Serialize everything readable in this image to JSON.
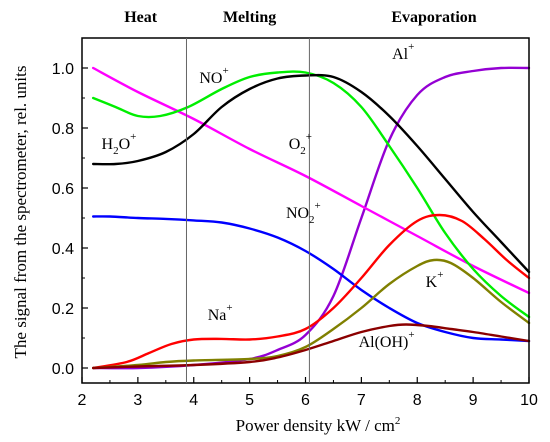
{
  "chart_data": {
    "type": "line",
    "xlabel": "Power density kW / cm",
    "xlabel_sup": "2",
    "ylabel": "The signal from the spectrometer, rel. units",
    "xlim": [
      2,
      10
    ],
    "ylim": [
      -0.05,
      1.1
    ],
    "x_ticks": [
      "2",
      "3",
      "4",
      "5",
      "6",
      "7",
      "8",
      "9",
      "10"
    ],
    "y_ticks": [
      "0.0",
      "0.2",
      "0.4",
      "0.6",
      "0.8",
      "1.0"
    ],
    "grid": false,
    "legend": "none",
    "phases": [
      {
        "label": "Heat",
        "center": 3.05
      },
      {
        "label": "Melting",
        "center": 5.0
      },
      {
        "label": "Evaporation",
        "center": 8.3
      }
    ],
    "phase_boundaries": [
      3.87,
      6.07
    ],
    "annotations": [
      {
        "base": "NO",
        "sup": "+",
        "sub": "",
        "x": 4.1,
        "y": 0.95
      },
      {
        "base": "H",
        "sub": "2",
        "rest": "O",
        "sup": "+",
        "x": 2.35,
        "y": 0.73
      },
      {
        "base": "O",
        "sub": "2",
        "sup": "+",
        "x": 5.7,
        "y": 0.73
      },
      {
        "base": "NO",
        "sub": "2",
        "sup": "+",
        "x": 5.65,
        "y": 0.5
      },
      {
        "base": "Al",
        "sup": "+",
        "sub": "",
        "x": 7.55,
        "y": 1.03
      },
      {
        "base": "Na",
        "sup": "+",
        "sub": "",
        "x": 4.25,
        "y": 0.16
      },
      {
        "base": "K",
        "sup": "+",
        "sub": "",
        "x": 8.15,
        "y": 0.27
      },
      {
        "base": "Al(OH)",
        "sup": "+",
        "sub": "",
        "x": 6.95,
        "y": 0.07
      }
    ],
    "series": [
      {
        "label": "Al+",
        "color": "#9400d3",
        "x": [
          2.2,
          3,
          4,
          5,
          5.5,
          6,
          6.5,
          7,
          7.5,
          8,
          8.5,
          9,
          9.5,
          10
        ],
        "y": [
          0.0,
          0.0,
          0.01,
          0.03,
          0.06,
          0.11,
          0.24,
          0.5,
          0.76,
          0.91,
          0.97,
          0.99,
          1.0,
          1.0
        ]
      },
      {
        "label": "H2O+",
        "color": "#ff00ff",
        "x": [
          2.2,
          3,
          4,
          5,
          6,
          7,
          8,
          9,
          10
        ],
        "y": [
          1.0,
          0.92,
          0.83,
          0.73,
          0.64,
          0.54,
          0.44,
          0.34,
          0.25
        ]
      },
      {
        "label": "NO+",
        "color": "#00ee00",
        "x": [
          2.2,
          2.6,
          3.0,
          3.4,
          3.9,
          4.5,
          5.0,
          5.5,
          6.0,
          6.5,
          7.0,
          7.5,
          8.0,
          8.5,
          9.0,
          9.5,
          10.0
        ],
        "y": [
          0.9,
          0.87,
          0.84,
          0.84,
          0.87,
          0.93,
          0.97,
          0.985,
          0.985,
          0.95,
          0.87,
          0.74,
          0.6,
          0.45,
          0.33,
          0.24,
          0.17
        ]
      },
      {
        "label": "O2+",
        "color": "#000000",
        "x": [
          2.2,
          2.6,
          3.0,
          3.5,
          4.0,
          4.5,
          5.0,
          5.5,
          6.0,
          6.5,
          7.0,
          7.5,
          8.0,
          8.5,
          9.0,
          9.5,
          10.0
        ],
        "y": [
          0.68,
          0.68,
          0.69,
          0.72,
          0.78,
          0.87,
          0.93,
          0.965,
          0.975,
          0.97,
          0.92,
          0.84,
          0.74,
          0.63,
          0.52,
          0.42,
          0.32
        ]
      },
      {
        "label": "NO2+",
        "color": "#0000ff",
        "x": [
          2.2,
          2.5,
          3.0,
          3.5,
          4.0,
          4.5,
          5.0,
          5.5,
          6.0,
          6.5,
          7.0,
          7.5,
          8.0,
          8.5,
          9.0,
          9.5,
          10.0
        ],
        "y": [
          0.505,
          0.505,
          0.5,
          0.497,
          0.492,
          0.485,
          0.465,
          0.435,
          0.39,
          0.33,
          0.26,
          0.2,
          0.15,
          0.12,
          0.1,
          0.095,
          0.09
        ]
      },
      {
        "label": "Na+",
        "color": "#ff0000",
        "x": [
          2.2,
          2.8,
          3.2,
          3.6,
          4.0,
          4.5,
          5.0,
          5.5,
          6.0,
          6.5,
          7.0,
          7.5,
          8.0,
          8.4,
          8.8,
          9.2,
          9.6,
          10.0
        ],
        "y": [
          0.0,
          0.02,
          0.05,
          0.08,
          0.095,
          0.097,
          0.095,
          0.105,
          0.13,
          0.2,
          0.3,
          0.41,
          0.49,
          0.51,
          0.49,
          0.43,
          0.36,
          0.3
        ]
      },
      {
        "label": "K+",
        "color": "#808000",
        "x": [
          2.2,
          3.0,
          3.5,
          4.0,
          5.0,
          5.5,
          6.0,
          6.5,
          7.0,
          7.5,
          8.0,
          8.3,
          8.6,
          9.0,
          9.5,
          10.0
        ],
        "y": [
          0.0,
          0.01,
          0.02,
          0.025,
          0.03,
          0.04,
          0.07,
          0.13,
          0.2,
          0.28,
          0.34,
          0.36,
          0.35,
          0.3,
          0.22,
          0.15
        ]
      },
      {
        "label": "Al(OH)+",
        "color": "#8b0000",
        "x": [
          2.2,
          3.0,
          4.0,
          5.0,
          5.5,
          6.0,
          6.5,
          7.0,
          7.5,
          7.8,
          8.2,
          8.6,
          9.0,
          9.5,
          10.0
        ],
        "y": [
          0.0,
          0.005,
          0.01,
          0.02,
          0.035,
          0.06,
          0.09,
          0.12,
          0.14,
          0.145,
          0.14,
          0.13,
          0.12,
          0.105,
          0.09
        ]
      }
    ]
  }
}
